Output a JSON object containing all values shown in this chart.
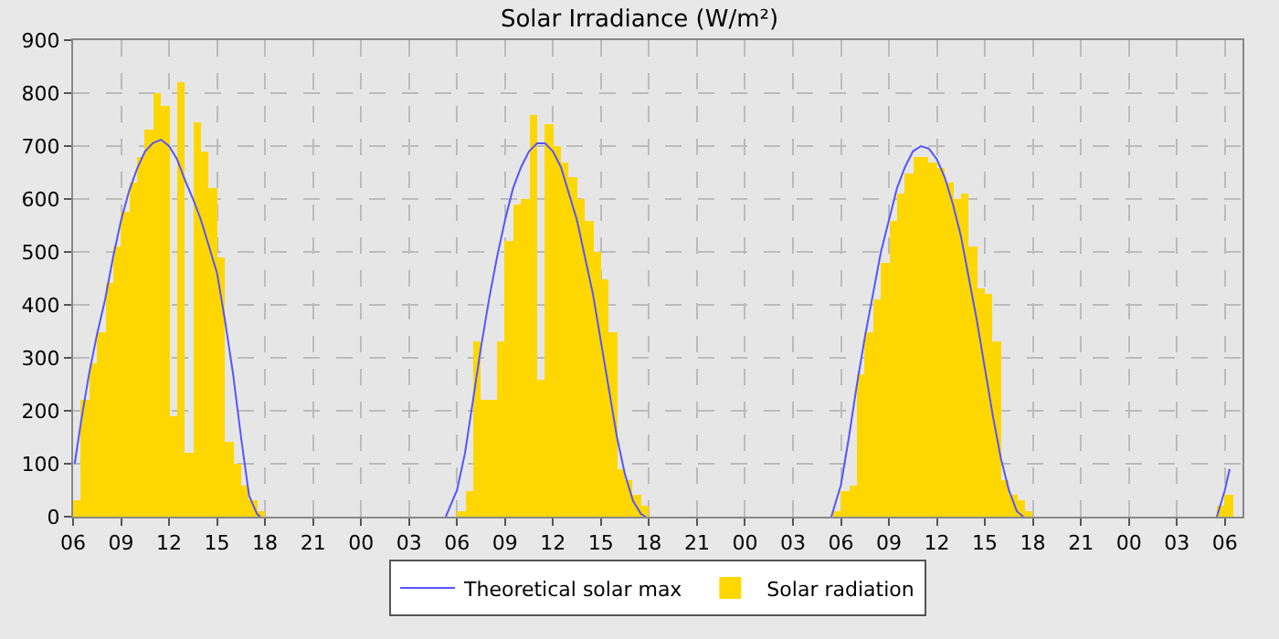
{
  "chart_data": {
    "type": "bar",
    "title": "Solar Irradiance (W/m²)",
    "xlim": [
      6,
      79.1
    ],
    "xticks": [
      {
        "value": 6,
        "label": "06"
      },
      {
        "value": 9,
        "label": "09"
      },
      {
        "value": 12,
        "label": "12"
      },
      {
        "value": 15,
        "label": "15"
      },
      {
        "value": 18,
        "label": "18"
      },
      {
        "value": 21,
        "label": "21"
      },
      {
        "value": 24,
        "label": "00"
      },
      {
        "value": 27,
        "label": "03"
      },
      {
        "value": 30,
        "label": "06"
      },
      {
        "value": 33,
        "label": "09"
      },
      {
        "value": 36,
        "label": "12"
      },
      {
        "value": 39,
        "label": "15"
      },
      {
        "value": 42,
        "label": "18"
      },
      {
        "value": 45,
        "label": "21"
      },
      {
        "value": 48,
        "label": "00"
      },
      {
        "value": 51,
        "label": "03"
      },
      {
        "value": 54,
        "label": "06"
      },
      {
        "value": 57,
        "label": "09"
      },
      {
        "value": 60,
        "label": "12"
      },
      {
        "value": 63,
        "label": "15"
      },
      {
        "value": 66,
        "label": "18"
      },
      {
        "value": 69,
        "label": "21"
      },
      {
        "value": 72,
        "label": "00"
      },
      {
        "value": 75,
        "label": "03"
      },
      {
        "value": 78,
        "label": "06"
      }
    ],
    "ylim": [
      0,
      900
    ],
    "yticks": [
      0,
      100,
      200,
      300,
      400,
      500,
      600,
      700,
      800,
      900
    ],
    "grid": true,
    "legend": "bottom",
    "series": [
      {
        "name": "Theoretical solar max",
        "type": "line",
        "color": "#5555ff",
        "marker": "none",
        "line_style": "solid",
        "x": [
          6.1,
          6.5,
          7,
          7.5,
          8,
          8.5,
          9,
          9.5,
          10,
          10.5,
          11,
          11.5,
          12,
          12.5,
          13,
          13.5,
          14,
          14.5,
          15,
          15.5,
          16,
          16.5,
          17,
          17.5,
          17.7,
          24,
          29.3,
          30,
          30.5,
          31,
          31.5,
          32,
          32.5,
          33,
          33.5,
          34,
          34.5,
          35,
          35.5,
          36,
          36.5,
          37,
          37.5,
          38,
          38.5,
          39,
          39.5,
          40,
          40.5,
          41,
          41.5,
          41.8,
          48,
          53.4,
          54,
          54.5,
          55,
          55.5,
          56,
          56.5,
          57,
          57.5,
          58,
          58.5,
          59,
          59.5,
          60,
          60.5,
          61,
          61.5,
          62,
          62.5,
          63,
          63.5,
          64,
          64.5,
          65,
          65.4,
          72,
          77.5,
          78,
          78.3
        ],
        "values": [
          100,
          180,
          270,
          345,
          410,
          490,
          560,
          615,
          657,
          690,
          706,
          712,
          700,
          675,
          635,
          600,
          560,
          510,
          460,
          370,
          270,
          150,
          40,
          5,
          0,
          null,
          0,
          50,
          120,
          220,
          320,
          410,
          490,
          560,
          620,
          660,
          690,
          705,
          705,
          690,
          660,
          610,
          560,
          490,
          420,
          330,
          240,
          150,
          80,
          30,
          5,
          0,
          null,
          0,
          60,
          150,
          250,
          340,
          420,
          500,
          560,
          620,
          660,
          690,
          700,
          695,
          675,
          640,
          590,
          530,
          450,
          370,
          280,
          190,
          110,
          50,
          10,
          0,
          null,
          0,
          50,
          90
        ]
      },
      {
        "name": "Solar radiation",
        "color": "#ffd700",
        "x": [
          6.25,
          6.75,
          7.25,
          7.75,
          8.25,
          8.75,
          9.25,
          9.75,
          10.25,
          10.75,
          11.25,
          11.75,
          12.25,
          12.75,
          13.25,
          13.75,
          14.25,
          14.75,
          15.25,
          15.75,
          16.25,
          16.75,
          17.25,
          17.75,
          30.25,
          30.75,
          31.25,
          31.75,
          32.25,
          32.75,
          33.25,
          33.75,
          34.25,
          34.75,
          35.25,
          35.75,
          36.25,
          36.75,
          37.25,
          37.75,
          38.25,
          38.75,
          39.25,
          39.75,
          40.25,
          40.75,
          41.25,
          41.75,
          53.75,
          54.25,
          54.75,
          55.25,
          55.75,
          56.25,
          56.75,
          57.25,
          57.75,
          58.25,
          58.75,
          59.25,
          59.75,
          60.25,
          60.75,
          61.25,
          61.75,
          62.25,
          62.75,
          63.25,
          63.75,
          64.25,
          64.75,
          65.25,
          65.75,
          77.75,
          78.25
        ],
        "values": [
          30,
          220,
          290,
          350,
          440,
          510,
          575,
          630,
          680,
          730,
          800,
          775,
          190,
          820,
          120,
          745,
          690,
          620,
          490,
          140,
          100,
          60,
          30,
          10,
          10,
          50,
          330,
          220,
          220,
          330,
          520,
          590,
          600,
          760,
          260,
          740,
          700,
          670,
          640,
          600,
          560,
          500,
          450,
          350,
          90,
          70,
          40,
          20,
          10,
          50,
          60,
          270,
          350,
          410,
          480,
          560,
          610,
          650,
          680,
          680,
          670,
          660,
          630,
          600,
          610,
          510,
          430,
          420,
          330,
          70,
          40,
          30,
          10,
          20,
          40
        ]
      }
    ]
  }
}
